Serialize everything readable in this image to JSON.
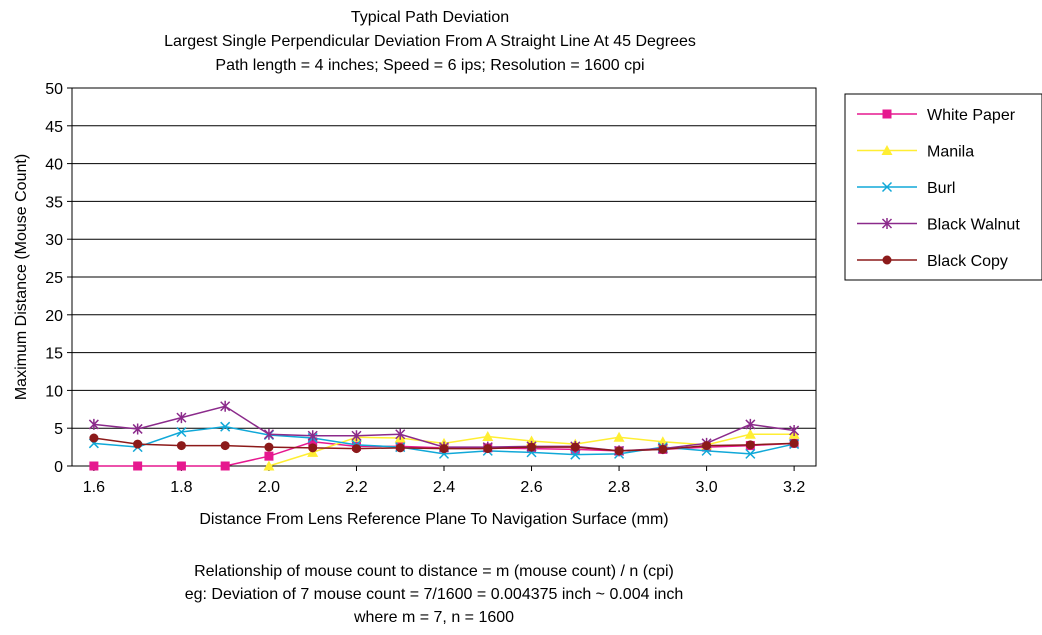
{
  "chart_data": {
    "type": "line",
    "title": "Typical Path Deviation",
    "subtitle": "Largest Single Perpendicular Deviation From A Straight Line At 45 Degrees",
    "subtitle2": "Path length = 4 inches; Speed = 6 ips; Resolution = 1600 cpi",
    "xlabel": "Distance From Lens Reference Plane To Navigation Surface (mm)",
    "ylabel": "Maximum Distance (Mouse Count)",
    "xlim": [
      1.55,
      3.25
    ],
    "ylim": [
      0,
      50
    ],
    "xticks": [
      "1.6",
      "1.8",
      "2.0",
      "2.2",
      "2.4",
      "2.6",
      "2.8",
      "3.0",
      "3.2"
    ],
    "xtick_values": [
      1.6,
      1.8,
      2.0,
      2.2,
      2.4,
      2.6,
      2.8,
      3.0,
      3.2
    ],
    "yticks": [
      "0",
      "5",
      "10",
      "15",
      "20",
      "25",
      "30",
      "35",
      "40",
      "45",
      "50"
    ],
    "ytick_values": [
      0,
      5,
      10,
      15,
      20,
      25,
      30,
      35,
      40,
      45,
      50
    ],
    "grid": "horizontal",
    "legend_position": "right",
    "x": [
      1.6,
      1.7,
      1.8,
      1.9,
      2.0,
      2.1,
      2.2,
      2.3,
      2.4,
      2.5,
      2.6,
      2.7,
      2.8,
      2.9,
      3.0,
      3.1,
      3.2
    ],
    "series": [
      {
        "name": "White Paper",
        "color": "#e6188f",
        "marker": "square",
        "values": [
          0,
          0,
          0,
          0,
          1.3,
          3.2,
          2.6,
          2.6,
          2.4,
          2.4,
          2.3,
          2.2,
          2.0,
          2.2,
          2.5,
          2.7,
          3.0
        ]
      },
      {
        "name": "Manila",
        "color": "#ffee33",
        "marker": "triangle",
        "values": [
          null,
          null,
          null,
          null,
          0,
          1.8,
          3.8,
          3.7,
          3.0,
          3.9,
          3.3,
          2.9,
          3.8,
          3.2,
          2.8,
          4.2,
          4.2
        ]
      },
      {
        "name": "Burl",
        "color": "#10a8d8",
        "marker": "x",
        "values": [
          3.0,
          2.5,
          4.5,
          5.2,
          4.1,
          3.7,
          2.8,
          2.5,
          1.6,
          2.0,
          1.8,
          1.5,
          1.6,
          2.5,
          2.0,
          1.6,
          2.9
        ]
      },
      {
        "name": "Black Walnut",
        "color": "#8b2a8b",
        "marker": "star",
        "values": [
          5.5,
          4.9,
          6.4,
          7.9,
          4.2,
          4.0,
          4.0,
          4.2,
          2.5,
          2.5,
          2.6,
          2.6,
          2.0,
          2.3,
          3.0,
          5.5,
          4.7
        ]
      },
      {
        "name": "Black Copy",
        "color": "#8c1a1a",
        "marker": "circle",
        "values": [
          3.7,
          2.9,
          2.7,
          2.7,
          2.5,
          2.4,
          2.3,
          2.4,
          2.3,
          2.3,
          2.5,
          2.5,
          2.0,
          2.2,
          2.7,
          2.8,
          3.0
        ]
      }
    ],
    "footnotes": [
      "Relationship of mouse count to distance = m (mouse count) / n (cpi)",
      "eg: Deviation of 7 mouse count = 7/1600 = 0.004375 inch ~ 0.004 inch",
      "where m = 7, n = 1600"
    ]
  }
}
